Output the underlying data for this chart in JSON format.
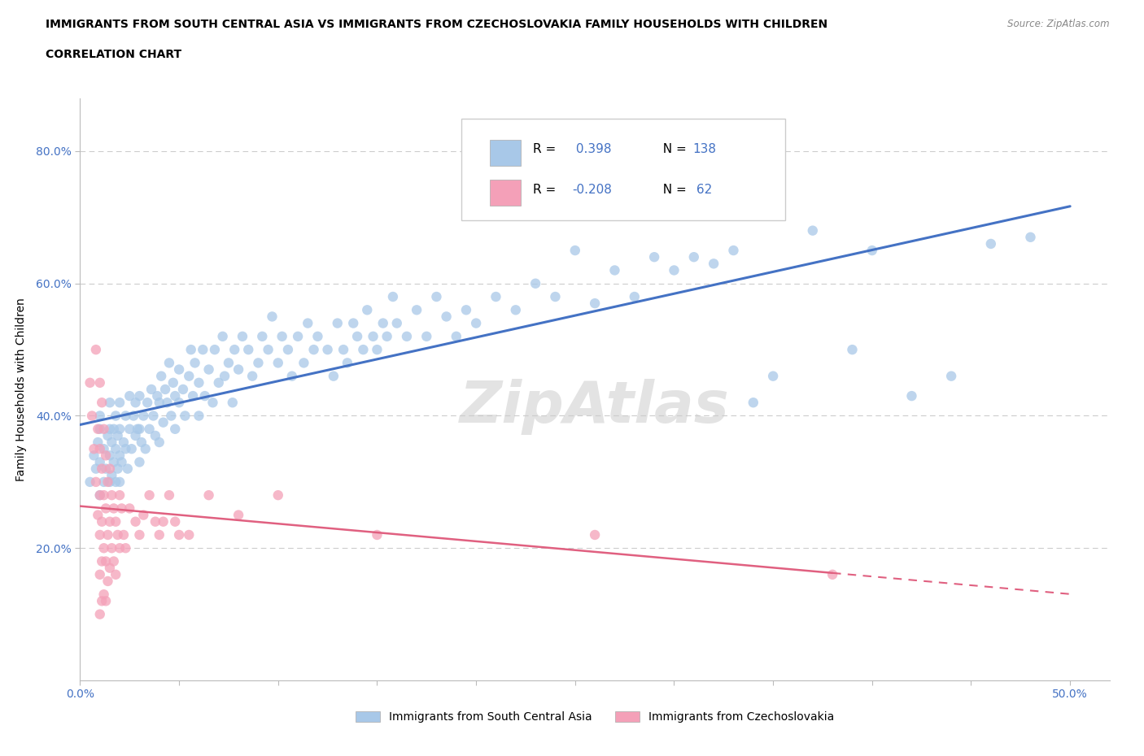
{
  "title_line1": "IMMIGRANTS FROM SOUTH CENTRAL ASIA VS IMMIGRANTS FROM CZECHOSLOVAKIA FAMILY HOUSEHOLDS WITH CHILDREN",
  "title_line2": "CORRELATION CHART",
  "source_text": "Source: ZipAtlas.com",
  "ylabel": "Family Households with Children",
  "xlim": [
    0.0,
    0.52
  ],
  "ylim": [
    0.0,
    0.88
  ],
  "ytick_positions": [
    0.2,
    0.4,
    0.6,
    0.8
  ],
  "ytick_labels": [
    "20.0%",
    "40.0%",
    "60.0%",
    "80.0%"
  ],
  "blue_color": "#a8c8e8",
  "blue_line_color": "#4472c4",
  "pink_color": "#f4a0b8",
  "pink_line_color": "#e06080",
  "R_blue": 0.398,
  "N_blue": 138,
  "R_pink": -0.208,
  "N_pink": 62,
  "grid_color": "#cccccc",
  "blue_scatter": [
    [
      0.005,
      0.3
    ],
    [
      0.007,
      0.34
    ],
    [
      0.008,
      0.32
    ],
    [
      0.009,
      0.36
    ],
    [
      0.01,
      0.28
    ],
    [
      0.01,
      0.33
    ],
    [
      0.01,
      0.38
    ],
    [
      0.01,
      0.4
    ],
    [
      0.012,
      0.3
    ],
    [
      0.012,
      0.35
    ],
    [
      0.013,
      0.32
    ],
    [
      0.014,
      0.37
    ],
    [
      0.015,
      0.3
    ],
    [
      0.015,
      0.34
    ],
    [
      0.015,
      0.38
    ],
    [
      0.015,
      0.42
    ],
    [
      0.016,
      0.31
    ],
    [
      0.016,
      0.36
    ],
    [
      0.017,
      0.33
    ],
    [
      0.017,
      0.38
    ],
    [
      0.018,
      0.3
    ],
    [
      0.018,
      0.35
    ],
    [
      0.018,
      0.4
    ],
    [
      0.019,
      0.32
    ],
    [
      0.019,
      0.37
    ],
    [
      0.02,
      0.3
    ],
    [
      0.02,
      0.34
    ],
    [
      0.02,
      0.38
    ],
    [
      0.02,
      0.42
    ],
    [
      0.021,
      0.33
    ],
    [
      0.022,
      0.36
    ],
    [
      0.023,
      0.35
    ],
    [
      0.023,
      0.4
    ],
    [
      0.024,
      0.32
    ],
    [
      0.025,
      0.38
    ],
    [
      0.025,
      0.43
    ],
    [
      0.026,
      0.35
    ],
    [
      0.027,
      0.4
    ],
    [
      0.028,
      0.37
    ],
    [
      0.028,
      0.42
    ],
    [
      0.029,
      0.38
    ],
    [
      0.03,
      0.33
    ],
    [
      0.03,
      0.38
    ],
    [
      0.03,
      0.43
    ],
    [
      0.031,
      0.36
    ],
    [
      0.032,
      0.4
    ],
    [
      0.033,
      0.35
    ],
    [
      0.034,
      0.42
    ],
    [
      0.035,
      0.38
    ],
    [
      0.036,
      0.44
    ],
    [
      0.037,
      0.4
    ],
    [
      0.038,
      0.37
    ],
    [
      0.039,
      0.43
    ],
    [
      0.04,
      0.36
    ],
    [
      0.04,
      0.42
    ],
    [
      0.041,
      0.46
    ],
    [
      0.042,
      0.39
    ],
    [
      0.043,
      0.44
    ],
    [
      0.044,
      0.42
    ],
    [
      0.045,
      0.48
    ],
    [
      0.046,
      0.4
    ],
    [
      0.047,
      0.45
    ],
    [
      0.048,
      0.38
    ],
    [
      0.048,
      0.43
    ],
    [
      0.05,
      0.42
    ],
    [
      0.05,
      0.47
    ],
    [
      0.052,
      0.44
    ],
    [
      0.053,
      0.4
    ],
    [
      0.055,
      0.46
    ],
    [
      0.056,
      0.5
    ],
    [
      0.057,
      0.43
    ],
    [
      0.058,
      0.48
    ],
    [
      0.06,
      0.4
    ],
    [
      0.06,
      0.45
    ],
    [
      0.062,
      0.5
    ],
    [
      0.063,
      0.43
    ],
    [
      0.065,
      0.47
    ],
    [
      0.067,
      0.42
    ],
    [
      0.068,
      0.5
    ],
    [
      0.07,
      0.45
    ],
    [
      0.072,
      0.52
    ],
    [
      0.073,
      0.46
    ],
    [
      0.075,
      0.48
    ],
    [
      0.077,
      0.42
    ],
    [
      0.078,
      0.5
    ],
    [
      0.08,
      0.47
    ],
    [
      0.082,
      0.52
    ],
    [
      0.085,
      0.5
    ],
    [
      0.087,
      0.46
    ],
    [
      0.09,
      0.48
    ],
    [
      0.092,
      0.52
    ],
    [
      0.095,
      0.5
    ],
    [
      0.097,
      0.55
    ],
    [
      0.1,
      0.48
    ],
    [
      0.102,
      0.52
    ],
    [
      0.105,
      0.5
    ],
    [
      0.107,
      0.46
    ],
    [
      0.11,
      0.52
    ],
    [
      0.113,
      0.48
    ],
    [
      0.115,
      0.54
    ],
    [
      0.118,
      0.5
    ],
    [
      0.12,
      0.52
    ],
    [
      0.125,
      0.5
    ],
    [
      0.128,
      0.46
    ],
    [
      0.13,
      0.54
    ],
    [
      0.133,
      0.5
    ],
    [
      0.135,
      0.48
    ],
    [
      0.138,
      0.54
    ],
    [
      0.14,
      0.52
    ],
    [
      0.143,
      0.5
    ],
    [
      0.145,
      0.56
    ],
    [
      0.148,
      0.52
    ],
    [
      0.15,
      0.5
    ],
    [
      0.153,
      0.54
    ],
    [
      0.155,
      0.52
    ],
    [
      0.158,
      0.58
    ],
    [
      0.16,
      0.54
    ],
    [
      0.165,
      0.52
    ],
    [
      0.17,
      0.56
    ],
    [
      0.175,
      0.52
    ],
    [
      0.18,
      0.58
    ],
    [
      0.185,
      0.55
    ],
    [
      0.19,
      0.52
    ],
    [
      0.195,
      0.56
    ],
    [
      0.2,
      0.54
    ],
    [
      0.21,
      0.58
    ],
    [
      0.22,
      0.56
    ],
    [
      0.23,
      0.6
    ],
    [
      0.24,
      0.58
    ],
    [
      0.25,
      0.65
    ],
    [
      0.26,
      0.57
    ],
    [
      0.27,
      0.62
    ],
    [
      0.28,
      0.58
    ],
    [
      0.29,
      0.64
    ],
    [
      0.3,
      0.62
    ],
    [
      0.31,
      0.64
    ],
    [
      0.32,
      0.63
    ],
    [
      0.33,
      0.65
    ],
    [
      0.34,
      0.42
    ],
    [
      0.35,
      0.46
    ],
    [
      0.37,
      0.68
    ],
    [
      0.39,
      0.5
    ],
    [
      0.4,
      0.65
    ],
    [
      0.42,
      0.43
    ],
    [
      0.44,
      0.46
    ],
    [
      0.46,
      0.66
    ],
    [
      0.48,
      0.67
    ]
  ],
  "pink_scatter": [
    [
      0.005,
      0.45
    ],
    [
      0.006,
      0.4
    ],
    [
      0.007,
      0.35
    ],
    [
      0.008,
      0.5
    ],
    [
      0.008,
      0.3
    ],
    [
      0.009,
      0.38
    ],
    [
      0.009,
      0.25
    ],
    [
      0.01,
      0.45
    ],
    [
      0.01,
      0.35
    ],
    [
      0.01,
      0.28
    ],
    [
      0.01,
      0.22
    ],
    [
      0.01,
      0.16
    ],
    [
      0.01,
      0.1
    ],
    [
      0.011,
      0.42
    ],
    [
      0.011,
      0.32
    ],
    [
      0.011,
      0.24
    ],
    [
      0.011,
      0.18
    ],
    [
      0.011,
      0.12
    ],
    [
      0.012,
      0.38
    ],
    [
      0.012,
      0.28
    ],
    [
      0.012,
      0.2
    ],
    [
      0.012,
      0.13
    ],
    [
      0.013,
      0.34
    ],
    [
      0.013,
      0.26
    ],
    [
      0.013,
      0.18
    ],
    [
      0.013,
      0.12
    ],
    [
      0.014,
      0.3
    ],
    [
      0.014,
      0.22
    ],
    [
      0.014,
      0.15
    ],
    [
      0.015,
      0.32
    ],
    [
      0.015,
      0.24
    ],
    [
      0.015,
      0.17
    ],
    [
      0.016,
      0.28
    ],
    [
      0.016,
      0.2
    ],
    [
      0.017,
      0.26
    ],
    [
      0.017,
      0.18
    ],
    [
      0.018,
      0.24
    ],
    [
      0.018,
      0.16
    ],
    [
      0.019,
      0.22
    ],
    [
      0.02,
      0.28
    ],
    [
      0.02,
      0.2
    ],
    [
      0.021,
      0.26
    ],
    [
      0.022,
      0.22
    ],
    [
      0.023,
      0.2
    ],
    [
      0.025,
      0.26
    ],
    [
      0.028,
      0.24
    ],
    [
      0.03,
      0.22
    ],
    [
      0.032,
      0.25
    ],
    [
      0.035,
      0.28
    ],
    [
      0.038,
      0.24
    ],
    [
      0.04,
      0.22
    ],
    [
      0.042,
      0.24
    ],
    [
      0.045,
      0.28
    ],
    [
      0.048,
      0.24
    ],
    [
      0.05,
      0.22
    ],
    [
      0.055,
      0.22
    ],
    [
      0.065,
      0.28
    ],
    [
      0.08,
      0.25
    ],
    [
      0.1,
      0.28
    ],
    [
      0.15,
      0.22
    ],
    [
      0.26,
      0.22
    ],
    [
      0.38,
      0.16
    ]
  ]
}
